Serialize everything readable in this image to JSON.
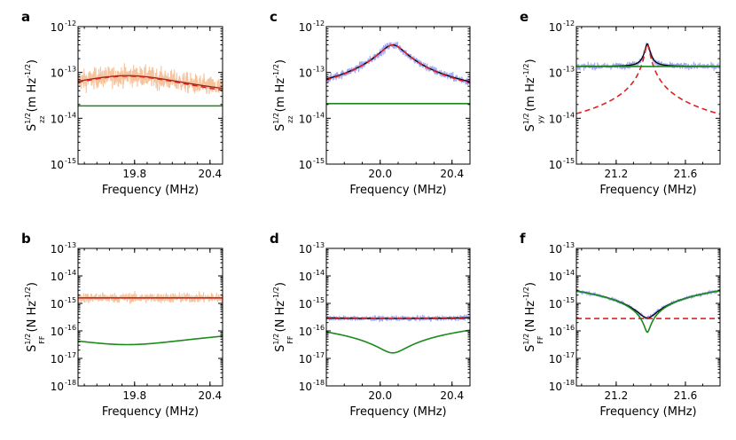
{
  "chart_data": [
    {
      "panel": "a",
      "type": "line",
      "xlabel": "Frequency (MHz)",
      "ylabel": "S_zz^1/2 (m Hz^-1/2)",
      "xlim": [
        19.35,
        20.5
      ],
      "ylim_exp": [
        -15,
        -12
      ],
      "yscale": "log",
      "xticks": [
        "19.8",
        "20.4"
      ],
      "xtick_values": [
        19.8,
        20.4
      ],
      "yticks": [
        "10",
        "10",
        "10",
        "10"
      ],
      "ytick_exps": [
        "-15",
        "-14",
        "-13",
        "-12"
      ],
      "ytick_values": [
        -15,
        -14,
        -13,
        -12
      ],
      "f0": 19.74,
      "sharpness": 0.43,
      "peak_exp": -13.08,
      "series": [
        {
          "kind": "data",
          "color": "#f6b98c",
          "noise": 0.22
        },
        {
          "kind": "total",
          "color": "#8b2a1f",
          "floor_exp": -14.3
        },
        {
          "kind": "signal",
          "color": "#e02020",
          "dashed": true
        },
        {
          "kind": "floor",
          "color": "#1a8a1a",
          "level_exp": -13.73
        }
      ]
    },
    {
      "panel": "c",
      "type": "line",
      "xlabel": "Frequency (MHz)",
      "ylabel": "S_zz^1/2 (m Hz^-1/2)",
      "xlim": [
        19.7,
        20.5
      ],
      "ylim_exp": [
        -15,
        -12
      ],
      "yscale": "log",
      "xticks": [
        "20.0",
        "20.4"
      ],
      "xtick_values": [
        20.0,
        20.4
      ],
      "yticks": [
        "10",
        "10",
        "10",
        "10"
      ],
      "ytick_exps": [
        "-15",
        "-14",
        "-13",
        "-12"
      ],
      "ytick_values": [
        -15,
        -14,
        -13,
        -12
      ],
      "f0": 20.07,
      "sharpness": 0.065,
      "peak_exp": -12.4,
      "series": [
        {
          "kind": "data",
          "color": "#8f96f0",
          "noise": 0.09
        },
        {
          "kind": "total",
          "color": "#000000"
        },
        {
          "kind": "signal",
          "color": "#e02020",
          "dashed": true
        },
        {
          "kind": "floor",
          "color": "#1a8a1a",
          "level_exp": -13.68
        }
      ]
    },
    {
      "panel": "e",
      "type": "line",
      "xlabel": "Frequency (MHz)",
      "ylabel": "S_yy^1/2 (m Hz^-1/2)",
      "xlim": [
        20.97,
        21.8
      ],
      "ylim_exp": [
        -15,
        -12
      ],
      "yscale": "log",
      "xticks": [
        "21.2",
        "21.6"
      ],
      "xtick_values": [
        21.2,
        21.6
      ],
      "yticks": [
        "10",
        "10",
        "10",
        "10"
      ],
      "ytick_exps": [
        "-15",
        "-14",
        "-13",
        "-12"
      ],
      "ytick_values": [
        -15,
        -14,
        -13,
        -12
      ],
      "f0": 21.38,
      "sharpness": 0.013,
      "peak_exp": -12.4,
      "series": [
        {
          "kind": "data",
          "color": "#8f96f0",
          "noise": 0.07
        },
        {
          "kind": "total",
          "color": "#000000"
        },
        {
          "kind": "signal",
          "color": "#e02020",
          "dashed": true
        },
        {
          "kind": "floor",
          "color": "#1a8a1a",
          "level_exp": -12.87
        }
      ]
    },
    {
      "panel": "b",
      "type": "line",
      "xlabel": "Frequency (MHz)",
      "ylabel": "S_FF^1/2 (N Hz^-1/2)",
      "xlim": [
        19.35,
        20.5
      ],
      "ylim_exp": [
        -18,
        -13
      ],
      "yscale": "log",
      "xticks": [
        "19.8",
        "20.4"
      ],
      "xtick_values": [
        19.8,
        20.4
      ],
      "yticks": [
        "10",
        "10",
        "10",
        "10",
        "10",
        "10"
      ],
      "ytick_exps": [
        "-18",
        "-17",
        "-16",
        "-15",
        "-14",
        "-13"
      ],
      "ytick_values": [
        -18,
        -17,
        -16,
        -15,
        -14,
        -13
      ],
      "f0": 19.74,
      "sharpness": 0.43,
      "dip_exp": -16.5,
      "wing_exp": -14.55,
      "series": [
        {
          "kind": "data",
          "color": "#f6b98c",
          "noise": 0.18
        },
        {
          "kind": "total",
          "color": "#8b2a1f"
        },
        {
          "kind": "floor",
          "color": "#e02020",
          "dashed": true,
          "level_exp": -14.8
        },
        {
          "kind": "signal",
          "color": "#1a8a1a"
        }
      ]
    },
    {
      "panel": "d",
      "type": "line",
      "xlabel": "Frequency (MHz)",
      "ylabel": "S_FF^1/2 (N Hz^-1/2)",
      "xlim": [
        19.7,
        20.5
      ],
      "ylim_exp": [
        -18,
        -13
      ],
      "yscale": "log",
      "xticks": [
        "20.0",
        "20.4"
      ],
      "xtick_values": [
        20.0,
        20.4
      ],
      "yticks": [
        "10",
        "10",
        "10",
        "10",
        "10",
        "10"
      ],
      "ytick_exps": [
        "-18",
        "-17",
        "-16",
        "-15",
        "-14",
        "-13"
      ],
      "ytick_values": [
        -18,
        -17,
        -16,
        -15,
        -14,
        -13
      ],
      "f0": 20.07,
      "sharpness": 0.065,
      "dip_exp": -16.8,
      "wing_exp": -14.68,
      "series": [
        {
          "kind": "data",
          "color": "#8f96f0",
          "noise": 0.09
        },
        {
          "kind": "total",
          "color": "#000000"
        },
        {
          "kind": "floor",
          "color": "#e02020",
          "dashed": true,
          "level_exp": -15.55
        },
        {
          "kind": "signal",
          "color": "#1a8a1a"
        }
      ]
    },
    {
      "panel": "f",
      "type": "line",
      "xlabel": "Frequency (MHz)",
      "ylabel": "S_FF^1/2 (N Hz^-1/2)",
      "xlim": [
        20.97,
        21.8
      ],
      "ylim_exp": [
        -18,
        -13
      ],
      "yscale": "log",
      "xticks": [
        "21.2",
        "21.6"
      ],
      "xtick_values": [
        21.2,
        21.6
      ],
      "yticks": [
        "10",
        "10",
        "10",
        "10",
        "10",
        "10"
      ],
      "ytick_exps": [
        "-18",
        "-17",
        "-16",
        "-15",
        "-14",
        "-13"
      ],
      "ytick_values": [
        -18,
        -17,
        -16,
        -15,
        -14,
        -13
      ],
      "f0": 21.38,
      "sharpness": 0.013,
      "dip_exp": -16.05,
      "wing_exp": -13.8,
      "series": [
        {
          "kind": "data",
          "color": "#8f96f0",
          "noise": 0.07
        },
        {
          "kind": "total",
          "color": "#000000"
        },
        {
          "kind": "floor",
          "color": "#e02020",
          "dashed": true,
          "level_exp": -15.55
        },
        {
          "kind": "signal",
          "color": "#1a8a1a"
        }
      ]
    }
  ]
}
